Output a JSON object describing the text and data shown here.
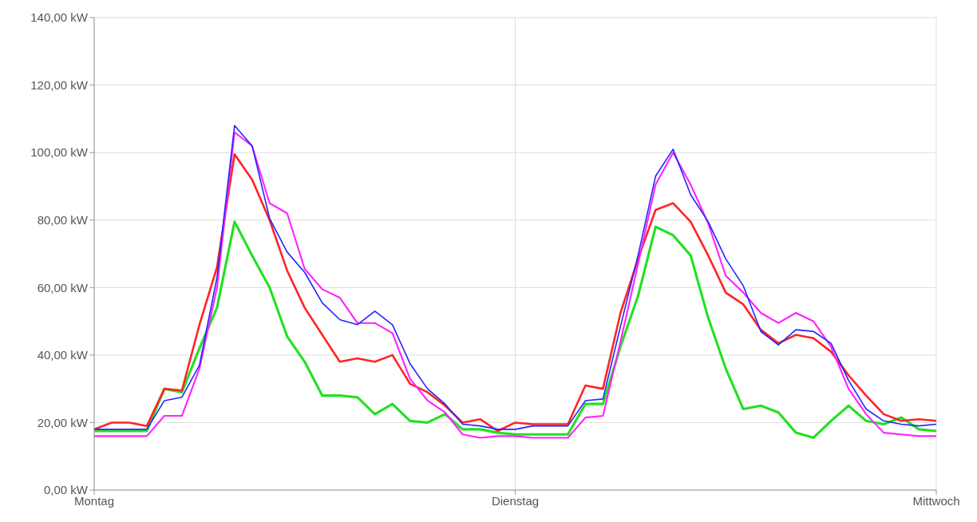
{
  "chart_data": {
    "type": "line",
    "categories": [
      "Montag",
      null,
      null,
      null,
      null,
      null,
      null,
      null,
      null,
      null,
      null,
      null,
      null,
      null,
      null,
      null,
      null,
      null,
      null,
      null,
      null,
      null,
      null,
      null,
      "Dienstag",
      null,
      null,
      null,
      null,
      null,
      null,
      null,
      null,
      null,
      null,
      null,
      null,
      null,
      null,
      null,
      null,
      null,
      null,
      null,
      null,
      null,
      null,
      null,
      "Mittwoch"
    ],
    "series": [
      {
        "color": "#22e022",
        "values": [
          17.5,
          17.5,
          17.5,
          17.5,
          30,
          29,
          42,
          54,
          79.5,
          69.5,
          60,
          45.5,
          38,
          28,
          28,
          27.5,
          22.5,
          25.5,
          20.5,
          20,
          22.5,
          18,
          18,
          17,
          16.5,
          16.5,
          16.5,
          16.5,
          25.5,
          25.5,
          42.5,
          57.5,
          78,
          75.5,
          69.5,
          51,
          36,
          24,
          25,
          23,
          17,
          15.5,
          20.5,
          25,
          20.5,
          19.5,
          21.5,
          18,
          17.5
        ]
      },
      {
        "color": "#ff2424",
        "values": [
          18,
          20,
          20,
          19,
          30,
          29.5,
          49,
          66,
          99.5,
          92,
          80,
          65,
          54,
          46,
          38,
          39,
          38,
          40,
          31.5,
          29,
          25,
          20,
          21,
          17.5,
          20,
          19.5,
          19.5,
          19.5,
          31,
          30,
          52.5,
          68.5,
          83,
          85,
          79.5,
          69.5,
          58.5,
          55,
          47.5,
          43.5,
          46,
          45,
          41,
          34,
          28,
          22.5,
          20.5,
          21,
          20.5
        ]
      },
      {
        "color": "#ff22ff",
        "values": [
          16,
          16,
          16,
          16,
          22,
          22,
          36,
          60,
          106,
          102,
          85,
          82,
          65.5,
          59.5,
          57,
          49.5,
          49.5,
          46.5,
          33,
          26.5,
          23,
          16.5,
          15.5,
          16,
          16,
          15.5,
          15.5,
          15.5,
          21.5,
          22,
          44,
          67,
          90.5,
          100,
          90.5,
          79,
          63.5,
          58.5,
          52.5,
          49.5,
          52.5,
          50,
          42.5,
          30,
          22.5,
          17,
          16.5,
          16,
          16
        ]
      },
      {
        "color": "#2424ff",
        "values": [
          18,
          18,
          18,
          18,
          26.5,
          27.5,
          37,
          63,
          108,
          102,
          80.5,
          70.5,
          64.5,
          55.5,
          50.5,
          49,
          53,
          49,
          37.5,
          30,
          25.5,
          19.5,
          19,
          18,
          18,
          19,
          19,
          19,
          26.5,
          27,
          48.5,
          69.5,
          93,
          101,
          87.5,
          79.5,
          68.5,
          60.5,
          47,
          43,
          47.5,
          47,
          43.5,
          32.5,
          24,
          20.5,
          19.5,
          19,
          19.5
        ]
      }
    ],
    "ylim": [
      0,
      140
    ],
    "yticks": [
      {
        "value": 0,
        "label": "0,00 kW"
      },
      {
        "value": 20,
        "label": "20,00 kW"
      },
      {
        "value": 40,
        "label": "40,00 kW"
      },
      {
        "value": 60,
        "label": "60,00 kW"
      },
      {
        "value": 80,
        "label": "80,00 kW"
      },
      {
        "value": 100,
        "label": "100,00 kW"
      },
      {
        "value": 120,
        "label": "120,00 kW"
      },
      {
        "value": 140,
        "label": "140,00 kW"
      }
    ],
    "grid": true,
    "legend": false,
    "marker": "none",
    "line_style": "solid"
  }
}
